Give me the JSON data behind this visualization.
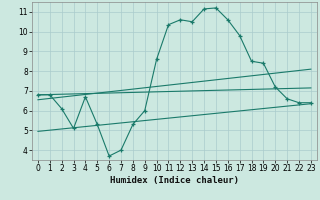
{
  "title": "",
  "xlabel": "Humidex (Indice chaleur)",
  "bg_color": "#cce8e0",
  "grid_color": "#aacccc",
  "line_color": "#1a7a6a",
  "xlim": [
    -0.5,
    23.5
  ],
  "ylim": [
    3.5,
    11.5
  ],
  "xticks": [
    0,
    1,
    2,
    3,
    4,
    5,
    6,
    7,
    8,
    9,
    10,
    11,
    12,
    13,
    14,
    15,
    16,
    17,
    18,
    19,
    20,
    21,
    22,
    23
  ],
  "yticks": [
    4,
    5,
    6,
    7,
    8,
    9,
    10,
    11
  ],
  "main_x": [
    0,
    1,
    2,
    3,
    4,
    5,
    6,
    7,
    8,
    9,
    10,
    11,
    12,
    13,
    14,
    15,
    16,
    17,
    18,
    19,
    20,
    21,
    22,
    23
  ],
  "main_y": [
    6.8,
    6.8,
    6.1,
    5.1,
    6.7,
    5.3,
    3.7,
    4.0,
    5.3,
    6.0,
    8.6,
    10.35,
    10.6,
    10.5,
    11.15,
    11.2,
    10.6,
    9.8,
    8.5,
    8.4,
    7.2,
    6.6,
    6.4,
    6.4
  ],
  "line1_x": [
    0,
    23
  ],
  "line1_y": [
    6.8,
    7.15
  ],
  "line2_x": [
    0,
    23
  ],
  "line2_y": [
    6.55,
    8.1
  ],
  "line3_x": [
    0,
    23
  ],
  "line3_y": [
    4.95,
    6.35
  ],
  "xlabel_fontsize": 6.5,
  "tick_fontsize": 5.5
}
